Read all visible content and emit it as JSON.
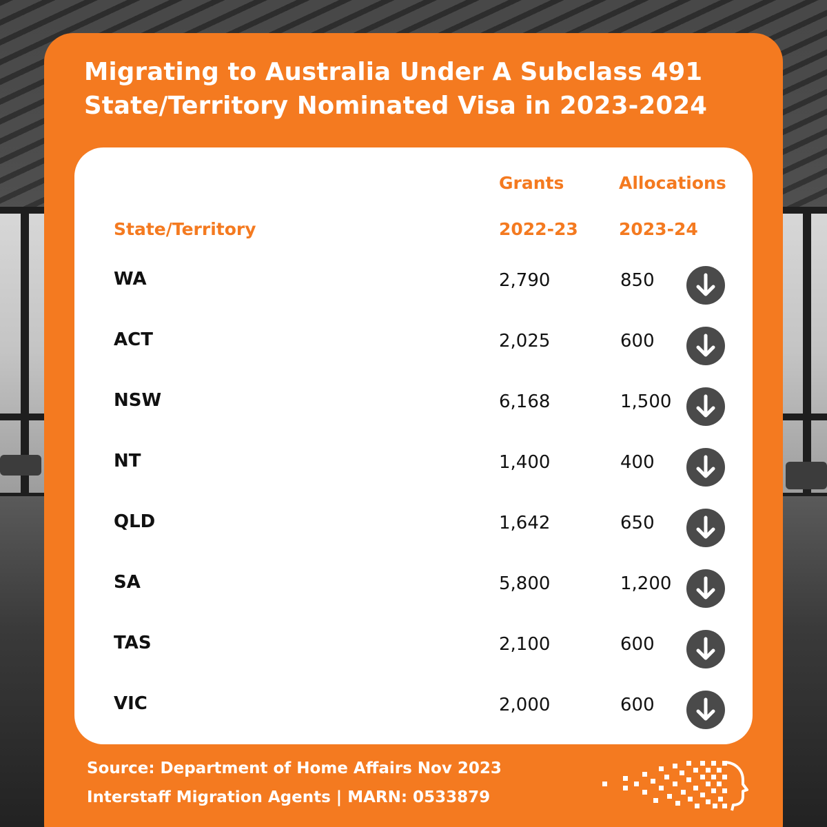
{
  "title": {
    "line1": "Migrating to Australia Under A Subclass 491",
    "line2": "State/Territory Nominated Visa in 2023-2024"
  },
  "table": {
    "headers": {
      "state": "State/Territory",
      "grants_label": "Grants",
      "grants_year": "2022-23",
      "alloc_label": "Allocations",
      "alloc_year": "2023-24"
    },
    "rows": [
      {
        "state": "WA",
        "grants": "2,790",
        "allocations": "850",
        "trend_icon": "arrow-down"
      },
      {
        "state": "ACT",
        "grants": "2,025",
        "allocations": "600",
        "trend_icon": "arrow-down"
      },
      {
        "state": "NSW",
        "grants": "6,168",
        "allocations": "1,500",
        "trend_icon": "arrow-down"
      },
      {
        "state": "NT",
        "grants": "1,400",
        "allocations": "400",
        "trend_icon": "arrow-down"
      },
      {
        "state": "QLD",
        "grants": "1,642",
        "allocations": "650",
        "trend_icon": "arrow-down"
      },
      {
        "state": "SA",
        "grants": "5,800",
        "allocations": "1,200",
        "trend_icon": "arrow-down"
      },
      {
        "state": "TAS",
        "grants": "2,100",
        "allocations": "600",
        "trend_icon": "arrow-down"
      },
      {
        "state": "VIC",
        "grants": "2,000",
        "allocations": "600",
        "trend_icon": "arrow-down"
      }
    ]
  },
  "footer": {
    "source": "Source: Department of Home Affairs Nov 2023",
    "agent": "Interstaff Migration Agents | MARN: 0533879"
  },
  "colors": {
    "accent": "#f47a20",
    "panel": "#ffffff",
    "icon_bg": "#4a4a4a",
    "text": "#111111"
  }
}
